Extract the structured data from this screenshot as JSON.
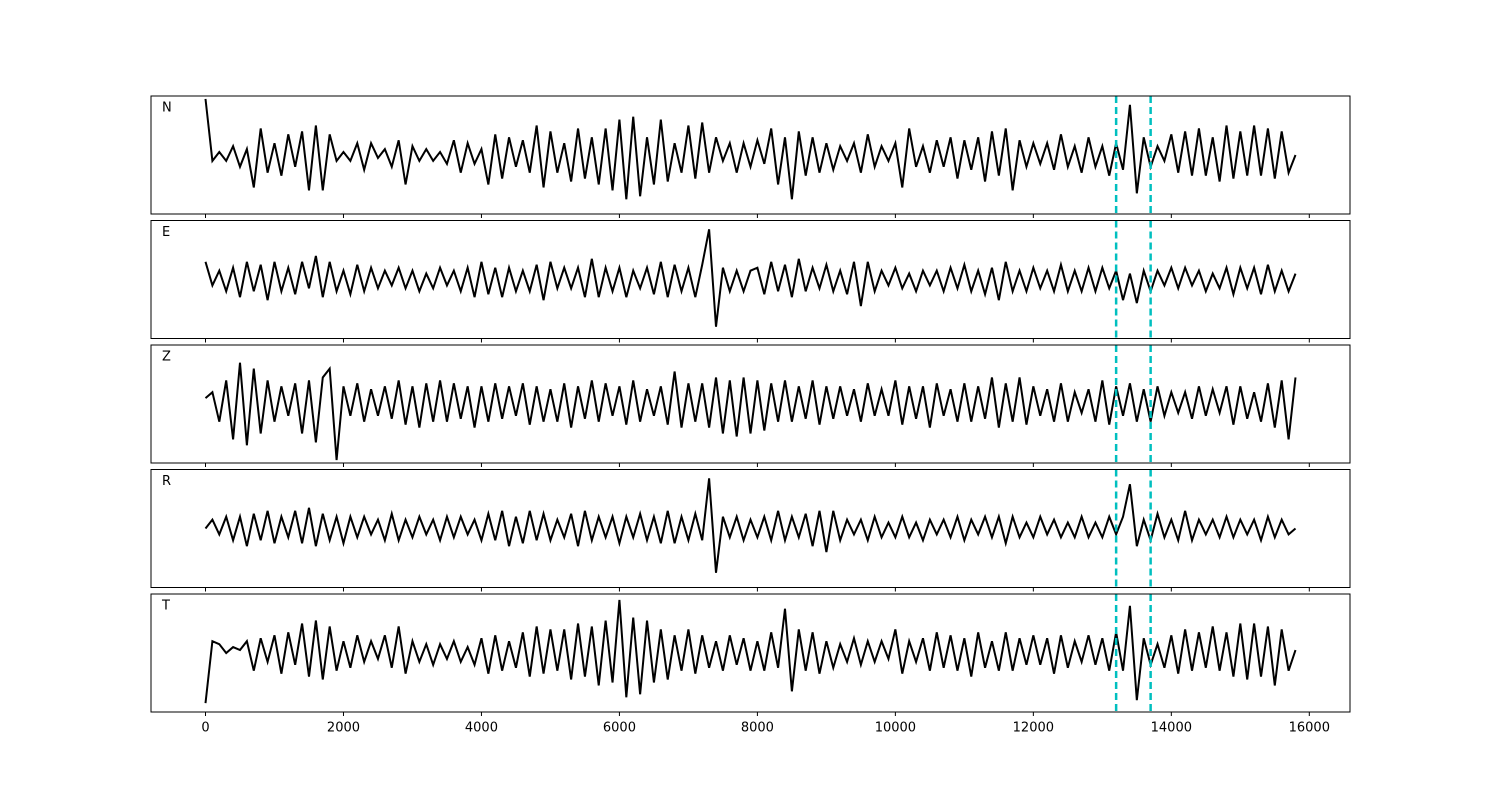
{
  "chart_data": {
    "type": "line",
    "x": [
      0,
      100,
      200,
      300,
      400,
      500,
      600,
      700,
      800,
      900,
      1000,
      1100,
      1200,
      1300,
      1400,
      1500,
      1600,
      1700,
      1800,
      1900,
      2000,
      2100,
      2200,
      2300,
      2400,
      2500,
      2600,
      2700,
      2800,
      2900,
      3000,
      3100,
      3200,
      3300,
      3400,
      3500,
      3600,
      3700,
      3800,
      3900,
      4000,
      4100,
      4200,
      4300,
      4400,
      4500,
      4600,
      4700,
      4800,
      4900,
      5000,
      5100,
      5200,
      5300,
      5400,
      5500,
      5600,
      5700,
      5800,
      5900,
      6000,
      6100,
      6200,
      6300,
      6400,
      6500,
      6600,
      6700,
      6800,
      6900,
      7000,
      7100,
      7200,
      7300,
      7400,
      7500,
      7600,
      7700,
      7800,
      7900,
      8000,
      8100,
      8200,
      8300,
      8400,
      8500,
      8600,
      8700,
      8800,
      8900,
      9000,
      9100,
      9200,
      9300,
      9400,
      9500,
      9600,
      9700,
      9800,
      9900,
      10000,
      10100,
      10200,
      10300,
      10400,
      10500,
      10600,
      10700,
      10800,
      10900,
      11000,
      11100,
      11200,
      11300,
      11400,
      11500,
      11600,
      11700,
      11800,
      11900,
      12000,
      12100,
      12200,
      12300,
      12400,
      12500,
      12600,
      12700,
      12800,
      12900,
      13000,
      13100,
      13200,
      13300,
      13400,
      13500,
      13600,
      13700,
      13800,
      13900,
      14000,
      14100,
      14200,
      14300,
      14400,
      14500,
      14600,
      14700,
      14800,
      14900,
      15000,
      15100,
      15200,
      15300,
      15400,
      15500,
      15600,
      15700,
      15800
    ],
    "series": [
      {
        "name": "N",
        "color": "#000000",
        "values": [
          0.95,
          -0.1,
          0.05,
          -0.1,
          0.15,
          -0.2,
          0.1,
          -0.55,
          0.45,
          -0.3,
          0.2,
          -0.35,
          0.35,
          -0.2,
          0.4,
          -0.6,
          0.5,
          -0.6,
          0.35,
          -0.1,
          0.05,
          -0.1,
          0.2,
          -0.25,
          0.2,
          -0.05,
          0.1,
          -0.2,
          0.25,
          -0.5,
          0.15,
          -0.1,
          0.1,
          -0.1,
          0.05,
          -0.15,
          0.25,
          -0.3,
          0.2,
          -0.15,
          0.1,
          -0.5,
          0.35,
          -0.4,
          0.3,
          -0.2,
          0.25,
          -0.3,
          0.5,
          -0.55,
          0.4,
          -0.3,
          0.2,
          -0.45,
          0.45,
          -0.4,
          0.3,
          -0.5,
          0.45,
          -0.6,
          0.6,
          -0.75,
          0.65,
          -0.7,
          0.3,
          -0.5,
          0.6,
          -0.45,
          0.2,
          -0.3,
          0.5,
          -0.4,
          0.55,
          -0.3,
          0.3,
          -0.1,
          0.2,
          -0.3,
          0.2,
          -0.2,
          0.25,
          -0.15,
          0.45,
          -0.5,
          0.3,
          -0.75,
          0.4,
          -0.35,
          0.3,
          -0.3,
          0.2,
          -0.25,
          0.15,
          -0.1,
          0.2,
          -0.3,
          0.35,
          -0.2,
          0.15,
          -0.1,
          0.2,
          -0.55,
          0.45,
          -0.2,
          0.15,
          -0.3,
          0.25,
          -0.2,
          0.3,
          -0.4,
          0.25,
          -0.25,
          0.3,
          -0.45,
          0.4,
          -0.35,
          0.45,
          -0.6,
          0.25,
          -0.2,
          0.2,
          -0.15,
          0.2,
          -0.25,
          0.35,
          -0.2,
          0.15,
          -0.3,
          0.3,
          -0.2,
          0.15,
          -0.35,
          0.2,
          -0.25,
          0.85,
          -0.65,
          0.3,
          -0.2,
          0.15,
          -0.1,
          0.35,
          -0.3,
          0.4,
          -0.35,
          0.45,
          -0.35,
          0.3,
          -0.45,
          0.5,
          -0.4,
          0.4,
          -0.35,
          0.5,
          -0.35,
          0.45,
          -0.4,
          0.4,
          -0.3,
          0.0
        ]
      },
      {
        "name": "E",
        "color": "#000000",
        "values": [
          0.3,
          -0.1,
          0.15,
          -0.2,
          0.2,
          -0.3,
          0.3,
          -0.2,
          0.25,
          -0.35,
          0.3,
          -0.2,
          0.2,
          -0.25,
          0.3,
          -0.15,
          0.4,
          -0.3,
          0.3,
          -0.2,
          0.15,
          -0.25,
          0.25,
          -0.2,
          0.2,
          -0.15,
          0.15,
          -0.1,
          0.2,
          -0.15,
          0.15,
          -0.2,
          0.1,
          -0.15,
          0.2,
          -0.1,
          0.15,
          -0.2,
          0.2,
          -0.3,
          0.3,
          -0.25,
          0.2,
          -0.3,
          0.2,
          -0.2,
          0.15,
          -0.2,
          0.25,
          -0.35,
          0.3,
          -0.15,
          0.2,
          -0.15,
          0.2,
          -0.3,
          0.35,
          -0.3,
          0.2,
          -0.2,
          0.2,
          -0.3,
          0.15,
          -0.15,
          0.2,
          -0.25,
          0.3,
          -0.3,
          0.25,
          -0.2,
          0.2,
          -0.3,
          0.25,
          0.85,
          -0.8,
          0.2,
          -0.2,
          0.15,
          -0.2,
          0.15,
          0.2,
          -0.25,
          0.3,
          -0.2,
          0.25,
          -0.3,
          0.35,
          -0.2,
          0.2,
          -0.15,
          0.25,
          -0.2,
          0.15,
          -0.25,
          0.3,
          -0.45,
          0.3,
          -0.2,
          0.15,
          -0.1,
          0.2,
          -0.15,
          0.1,
          -0.2,
          0.15,
          -0.1,
          0.15,
          -0.2,
          0.2,
          -0.15,
          0.25,
          -0.2,
          0.15,
          -0.25,
          0.2,
          -0.35,
          0.3,
          -0.2,
          0.15,
          -0.2,
          0.2,
          -0.15,
          0.15,
          -0.2,
          0.25,
          -0.2,
          0.15,
          -0.2,
          0.2,
          -0.2,
          0.2,
          -0.15,
          0.15,
          -0.35,
          0.1,
          -0.4,
          0.15,
          -0.2,
          0.15,
          -0.1,
          0.2,
          -0.15,
          0.2,
          -0.1,
          0.15,
          -0.2,
          0.1,
          -0.15,
          0.2,
          -0.25,
          0.2,
          -0.15,
          0.2,
          -0.25,
          0.25,
          -0.2,
          0.15,
          -0.2,
          0.1
        ]
      },
      {
        "name": "Z",
        "color": "#000000",
        "values": [
          0.1,
          0.2,
          -0.3,
          0.4,
          -0.6,
          0.7,
          -0.7,
          0.6,
          -0.5,
          0.4,
          -0.3,
          0.3,
          -0.2,
          0.35,
          -0.5,
          0.4,
          -0.65,
          0.45,
          0.6,
          -0.95,
          0.3,
          -0.2,
          0.35,
          -0.3,
          0.25,
          -0.2,
          0.3,
          -0.25,
          0.4,
          -0.35,
          0.3,
          -0.4,
          0.35,
          -0.3,
          0.4,
          -0.3,
          0.35,
          -0.25,
          0.3,
          -0.4,
          0.3,
          -0.3,
          0.35,
          -0.25,
          0.3,
          -0.2,
          0.35,
          -0.35,
          0.3,
          -0.3,
          0.25,
          -0.3,
          0.35,
          -0.4,
          0.3,
          -0.25,
          0.4,
          -0.3,
          0.35,
          -0.2,
          0.3,
          -0.35,
          0.4,
          -0.3,
          0.25,
          -0.2,
          0.3,
          -0.35,
          0.55,
          -0.4,
          0.35,
          -0.3,
          0.35,
          -0.4,
          0.45,
          -0.5,
          0.4,
          -0.55,
          0.45,
          -0.5,
          0.4,
          -0.45,
          0.35,
          -0.3,
          0.4,
          -0.3,
          0.3,
          -0.25,
          0.4,
          -0.35,
          0.3,
          -0.25,
          0.3,
          -0.2,
          0.25,
          -0.3,
          0.35,
          -0.2,
          0.25,
          -0.2,
          0.4,
          -0.35,
          0.3,
          -0.25,
          0.3,
          -0.4,
          0.35,
          -0.2,
          0.25,
          -0.3,
          0.35,
          -0.3,
          0.3,
          -0.25,
          0.45,
          -0.4,
          0.35,
          -0.3,
          0.45,
          -0.35,
          0.3,
          -0.2,
          0.25,
          -0.3,
          0.35,
          -0.3,
          0.2,
          -0.15,
          0.25,
          -0.3,
          0.4,
          -0.35,
          0.3,
          -0.2,
          0.35,
          -0.3,
          0.25,
          -0.3,
          0.3,
          -0.2,
          0.2,
          -0.15,
          0.2,
          -0.25,
          0.3,
          -0.2,
          0.25,
          -0.15,
          0.3,
          -0.35,
          0.3,
          -0.25,
          0.2,
          -0.3,
          0.35,
          -0.4,
          0.4,
          -0.6,
          0.45
        ]
      },
      {
        "name": "R",
        "color": "#000000",
        "values": [
          0.0,
          0.15,
          -0.1,
          0.2,
          -0.2,
          0.2,
          -0.3,
          0.25,
          -0.2,
          0.3,
          -0.25,
          0.2,
          -0.15,
          0.3,
          -0.25,
          0.35,
          -0.3,
          0.25,
          -0.2,
          0.2,
          -0.25,
          0.2,
          -0.15,
          0.2,
          -0.1,
          0.15,
          -0.2,
          0.25,
          -0.2,
          0.15,
          -0.15,
          0.2,
          -0.1,
          0.15,
          -0.2,
          0.2,
          -0.15,
          0.2,
          -0.1,
          0.15,
          -0.2,
          0.25,
          -0.2,
          0.3,
          -0.3,
          0.2,
          -0.25,
          0.3,
          -0.2,
          0.25,
          -0.2,
          0.15,
          -0.15,
          0.25,
          -0.3,
          0.3,
          -0.2,
          0.2,
          -0.15,
          0.2,
          -0.25,
          0.2,
          -0.15,
          0.25,
          -0.2,
          0.2,
          -0.25,
          0.3,
          -0.25,
          0.2,
          -0.2,
          0.25,
          -0.2,
          0.85,
          -0.75,
          0.2,
          -0.15,
          0.2,
          -0.2,
          0.15,
          -0.15,
          0.2,
          -0.2,
          0.3,
          -0.2,
          0.2,
          -0.15,
          0.25,
          -0.3,
          0.3,
          -0.4,
          0.3,
          -0.2,
          0.15,
          -0.1,
          0.15,
          -0.2,
          0.2,
          -0.15,
          0.1,
          -0.15,
          0.2,
          -0.15,
          0.1,
          -0.2,
          0.15,
          -0.1,
          0.15,
          -0.15,
          0.2,
          -0.2,
          0.15,
          -0.1,
          0.2,
          -0.15,
          0.2,
          -0.25,
          0.2,
          -0.15,
          0.1,
          -0.15,
          0.2,
          -0.1,
          0.15,
          -0.15,
          0.1,
          -0.15,
          0.2,
          -0.15,
          0.1,
          -0.15,
          0.2,
          -0.1,
          0.2,
          0.75,
          -0.3,
          0.15,
          -0.2,
          0.25,
          -0.15,
          0.15,
          -0.2,
          0.3,
          -0.2,
          0.15,
          -0.1,
          0.15,
          -0.15,
          0.2,
          -0.15,
          0.15,
          -0.1,
          0.15,
          -0.2,
          0.2,
          -0.15,
          0.15,
          -0.1,
          0.0
        ]
      },
      {
        "name": "T",
        "color": "#000000",
        "values": [
          -0.85,
          0.2,
          0.15,
          0.0,
          0.1,
          0.05,
          0.2,
          -0.3,
          0.25,
          -0.15,
          0.3,
          -0.35,
          0.35,
          -0.2,
          0.5,
          -0.4,
          0.55,
          -0.45,
          0.45,
          -0.3,
          0.2,
          -0.25,
          0.3,
          -0.15,
          0.2,
          -0.1,
          0.3,
          -0.25,
          0.45,
          -0.35,
          0.2,
          -0.15,
          0.15,
          -0.2,
          0.15,
          -0.1,
          0.2,
          -0.15,
          0.1,
          -0.2,
          0.25,
          -0.35,
          0.3,
          -0.3,
          0.2,
          -0.25,
          0.35,
          -0.4,
          0.45,
          -0.35,
          0.4,
          -0.3,
          0.4,
          -0.45,
          0.5,
          -0.4,
          0.45,
          -0.55,
          0.55,
          -0.5,
          0.9,
          -0.75,
          0.6,
          -0.7,
          0.55,
          -0.5,
          0.4,
          -0.45,
          0.3,
          -0.3,
          0.4,
          -0.35,
          0.3,
          -0.25,
          0.2,
          -0.3,
          0.3,
          -0.2,
          0.25,
          -0.3,
          0.2,
          -0.3,
          0.35,
          -0.25,
          0.75,
          -0.65,
          0.4,
          -0.3,
          0.35,
          -0.35,
          0.2,
          -0.25,
          0.15,
          -0.15,
          0.25,
          -0.2,
          0.2,
          -0.15,
          0.2,
          -0.1,
          0.4,
          -0.35,
          0.2,
          -0.15,
          0.25,
          -0.3,
          0.35,
          -0.25,
          0.3,
          -0.3,
          0.25,
          -0.4,
          0.35,
          -0.25,
          0.2,
          -0.3,
          0.35,
          -0.3,
          0.25,
          -0.2,
          0.3,
          -0.2,
          0.25,
          -0.35,
          0.3,
          -0.25,
          0.2,
          -0.15,
          0.3,
          -0.2,
          0.25,
          -0.3,
          0.35,
          -0.3,
          0.8,
          -0.8,
          0.25,
          -0.2,
          0.15,
          -0.25,
          0.3,
          -0.35,
          0.4,
          -0.3,
          0.35,
          -0.25,
          0.45,
          -0.3,
          0.35,
          -0.4,
          0.5,
          -0.45,
          0.5,
          -0.4,
          0.45,
          -0.55,
          0.4,
          -0.3,
          0.05
        ]
      }
    ],
    "xlim": [
      -790,
      16590
    ],
    "xticks": [
      0,
      2000,
      4000,
      6000,
      8000,
      10000,
      12000,
      14000,
      16000
    ],
    "ylim": [
      -1,
      1
    ],
    "vlines": [
      13200,
      13700
    ],
    "vline_color": "#00bfbf"
  }
}
